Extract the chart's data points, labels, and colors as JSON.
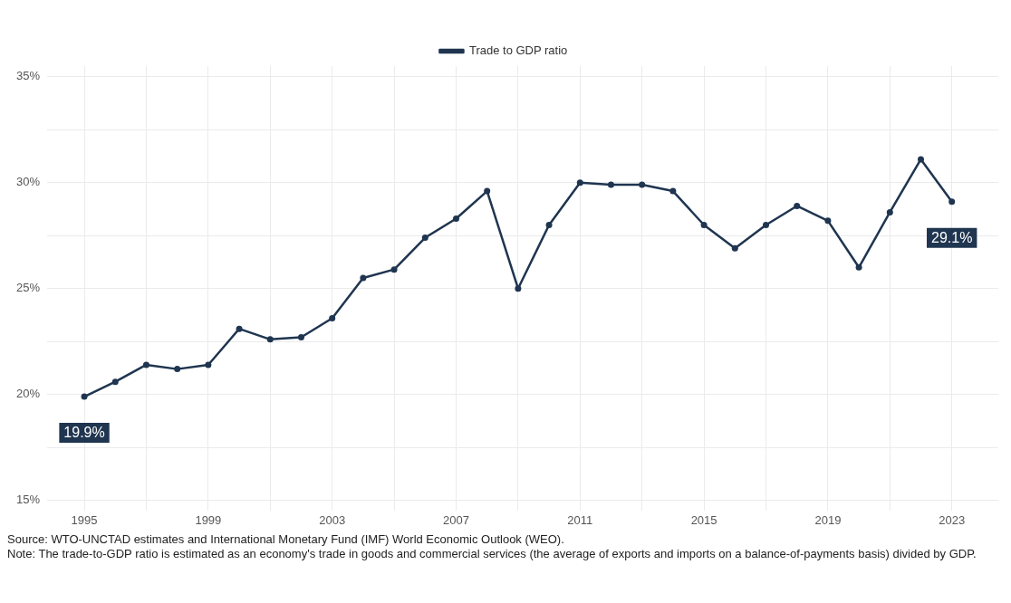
{
  "chart_data": {
    "type": "line",
    "x": [
      1995,
      1996,
      1997,
      1998,
      1999,
      2000,
      2001,
      2002,
      2003,
      2004,
      2005,
      2006,
      2007,
      2008,
      2009,
      2010,
      2011,
      2012,
      2013,
      2014,
      2015,
      2016,
      2017,
      2018,
      2019,
      2020,
      2021,
      2022,
      2023
    ],
    "series": [
      {
        "name": "Trade to GDP ratio",
        "color": "#1f3550",
        "values": [
          19.9,
          20.6,
          21.4,
          21.2,
          21.4,
          23.1,
          22.6,
          22.7,
          23.6,
          25.5,
          25.9,
          27.4,
          28.3,
          29.6,
          25.0,
          28.0,
          30.0,
          29.9,
          29.9,
          29.6,
          28.0,
          26.9,
          28.0,
          28.9,
          28.2,
          26.0,
          28.6,
          31.1,
          29.1
        ]
      }
    ],
    "xlim": [
      1993.8,
      2024.5
    ],
    "xticks": [
      1995,
      {
        "value": 1997,
        "label": null
      },
      1999,
      {
        "value": 2001,
        "label": null
      },
      2003,
      {
        "value": 2005,
        "label": null
      },
      2007,
      {
        "value": 2009,
        "label": null
      },
      2011,
      {
        "value": 2013,
        "label": null
      },
      2015,
      {
        "value": 2017,
        "label": null
      },
      2019,
      {
        "value": 2021,
        "label": null
      },
      2023
    ],
    "ylim": [
      14.5,
      35.5
    ],
    "yticks": [
      {
        "value": 15,
        "label": "15%"
      },
      {
        "value": 17.5,
        "label": null
      },
      {
        "value": 20,
        "label": "20%"
      },
      {
        "value": 22.5,
        "label": null
      },
      {
        "value": 25,
        "label": "25%"
      },
      {
        "value": 27.5,
        "label": null
      },
      {
        "value": 30,
        "label": "30%"
      },
      {
        "value": 32.5,
        "label": null
      },
      {
        "value": 35,
        "label": "35%"
      }
    ],
    "grid": true,
    "legend": "top",
    "marker": "circle",
    "line_style": "solid",
    "annotations": [
      {
        "text": "19.9%",
        "x": 1995,
        "y": 19.9
      },
      {
        "text": "29.1%",
        "x": 2023,
        "y": 29.1
      },
      "Source: WTO-UNCTAD estimates and International Monetary Fund (IMF) World Economic Outlook (WEO).",
      "Note: The trade-to-GDP ratio is estimated as an economy's trade in goods and commercial services (the average of exports and imports on a balance-of-payments basis) divided by GDP."
    ]
  }
}
